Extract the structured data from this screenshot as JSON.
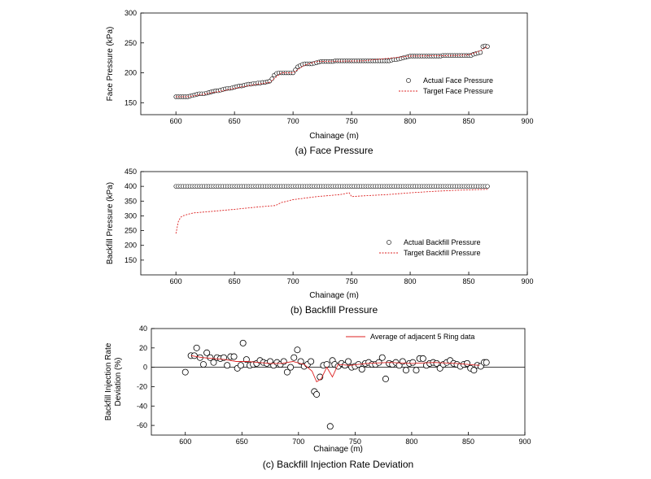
{
  "chart_data": [
    {
      "type": "scatter",
      "caption": "(a)  Face  Pressure",
      "xlabel": "Chainage (m)",
      "ylabel": "Face Pressure (kPa)",
      "xlim": [
        570,
        900
      ],
      "ylim": [
        130,
        300
      ],
      "xticks": [
        600,
        650,
        700,
        750,
        800,
        850,
        900
      ],
      "yticks": [
        150,
        200,
        250,
        300
      ],
      "legend_position": "bottom-right",
      "series": [
        {
          "name": "Actual Face Pressure",
          "style": "open-circle",
          "x": [
            600,
            602,
            604,
            606,
            608,
            610,
            612,
            614,
            616,
            618,
            620,
            622,
            624,
            626,
            628,
            630,
            632,
            634,
            636,
            638,
            640,
            642,
            644,
            646,
            648,
            650,
            652,
            654,
            656,
            658,
            660,
            662,
            664,
            666,
            668,
            670,
            672,
            674,
            676,
            678,
            680,
            682,
            684,
            686,
            688,
            690,
            692,
            694,
            696,
            698,
            700,
            702,
            704,
            706,
            708,
            710,
            712,
            714,
            716,
            718,
            720,
            722,
            724,
            726,
            728,
            730,
            732,
            734,
            736,
            738,
            740,
            742,
            744,
            746,
            748,
            750,
            752,
            754,
            756,
            758,
            760,
            762,
            764,
            766,
            768,
            770,
            772,
            774,
            776,
            778,
            780,
            782,
            784,
            786,
            788,
            790,
            792,
            794,
            796,
            798,
            800,
            802,
            804,
            806,
            808,
            810,
            812,
            814,
            816,
            818,
            820,
            822,
            824,
            826,
            828,
            830,
            832,
            834,
            836,
            838,
            840,
            842,
            844,
            846,
            848,
            850,
            852,
            854,
            856,
            858,
            860,
            862,
            864,
            866
          ],
          "y": [
            160,
            160,
            160,
            160,
            160,
            160,
            161,
            162,
            163,
            164,
            165,
            165,
            165,
            166,
            167,
            168,
            169,
            170,
            170,
            171,
            172,
            173,
            174,
            174,
            175,
            176,
            177,
            178,
            178,
            179,
            180,
            181,
            181,
            182,
            182,
            183,
            183,
            184,
            184,
            185,
            186,
            190,
            196,
            199,
            200,
            200,
            200,
            200,
            200,
            200,
            200,
            205,
            210,
            212,
            214,
            215,
            215,
            215,
            215,
            216,
            217,
            218,
            219,
            219,
            219,
            219,
            219,
            219,
            220,
            220,
            220,
            220,
            220,
            220,
            220,
            220,
            220,
            220,
            220,
            220,
            220,
            220,
            220,
            220,
            220,
            220,
            220,
            220,
            220,
            220,
            220,
            220,
            221,
            222,
            222,
            223,
            224,
            225,
            226,
            227,
            228,
            228,
            228,
            228,
            228,
            228,
            228,
            228,
            228,
            228,
            228,
            228,
            228,
            228,
            229,
            229,
            229,
            229,
            229,
            229,
            229,
            229,
            229,
            229,
            229,
            229,
            229,
            231,
            232,
            233,
            234,
            244,
            245,
            244
          ]
        },
        {
          "name": "Target Face Pressure",
          "style": "dashed-line",
          "x": [
            600,
            610,
            620,
            640,
            660,
            680,
            690,
            700,
            710,
            720,
            760,
            800,
            840,
            850,
            860,
            866
          ],
          "y": [
            160,
            160,
            163,
            170,
            178,
            184,
            200,
            200,
            213,
            219,
            220,
            228,
            229,
            230,
            237,
            244
          ]
        }
      ]
    },
    {
      "type": "scatter",
      "caption": "(b)  Backfill  Pressure",
      "xlabel": "Chainage (m)",
      "ylabel": "Backfill Pressure (kPa)",
      "xlim": [
        570,
        900
      ],
      "ylim": [
        100,
        450
      ],
      "xticks": [
        600,
        650,
        700,
        750,
        800,
        850,
        900
      ],
      "yticks": [
        150,
        200,
        250,
        300,
        350,
        400,
        450
      ],
      "legend_position": "right",
      "series": [
        {
          "name": "Actual Backfill Pressure",
          "style": "open-circle",
          "x": [
            600,
            602,
            604,
            606,
            608,
            610,
            612,
            614,
            616,
            618,
            620,
            622,
            624,
            626,
            628,
            630,
            632,
            634,
            636,
            638,
            640,
            642,
            644,
            646,
            648,
            650,
            652,
            654,
            656,
            658,
            660,
            662,
            664,
            666,
            668,
            670,
            672,
            674,
            676,
            678,
            680,
            682,
            684,
            686,
            688,
            690,
            692,
            694,
            696,
            698,
            700,
            702,
            704,
            706,
            708,
            710,
            712,
            714,
            716,
            718,
            720,
            722,
            724,
            726,
            728,
            730,
            732,
            734,
            736,
            738,
            740,
            742,
            744,
            746,
            748,
            750,
            752,
            754,
            756,
            758,
            760,
            762,
            764,
            766,
            768,
            770,
            772,
            774,
            776,
            778,
            780,
            782,
            784,
            786,
            788,
            790,
            792,
            794,
            796,
            798,
            800,
            802,
            804,
            806,
            808,
            810,
            812,
            814,
            816,
            818,
            820,
            822,
            824,
            826,
            828,
            830,
            832,
            834,
            836,
            838,
            840,
            842,
            844,
            846,
            848,
            850,
            852,
            854,
            856,
            858,
            860,
            862,
            864,
            866
          ],
          "y": [
            400,
            400,
            400,
            400,
            400,
            400,
            400,
            400,
            400,
            400,
            400,
            400,
            400,
            400,
            400,
            400,
            400,
            400,
            400,
            400,
            400,
            400,
            400,
            400,
            400,
            400,
            400,
            400,
            400,
            400,
            400,
            400,
            400,
            400,
            400,
            400,
            400,
            400,
            400,
            400,
            400,
            400,
            400,
            400,
            400,
            400,
            400,
            400,
            400,
            400,
            400,
            400,
            400,
            400,
            400,
            400,
            400,
            400,
            400,
            400,
            400,
            400,
            400,
            400,
            400,
            400,
            400,
            400,
            400,
            400,
            400,
            400,
            400,
            400,
            400,
            400,
            400,
            400,
            400,
            400,
            400,
            400,
            400,
            400,
            400,
            400,
            400,
            400,
            400,
            400,
            400,
            400,
            400,
            400,
            400,
            400,
            400,
            400,
            400,
            400,
            400,
            400,
            400,
            400,
            400,
            400,
            400,
            400,
            400,
            400,
            400,
            400,
            400,
            400,
            400,
            400,
            400,
            400,
            400,
            400,
            400,
            400,
            400,
            400,
            400,
            400,
            400,
            400,
            400,
            400,
            400,
            400,
            400,
            400
          ]
        },
        {
          "name": "Target Backfill Pressure",
          "style": "dashed-line",
          "x": [
            600,
            602,
            604,
            606,
            610,
            615,
            630,
            650,
            670,
            685,
            690,
            700,
            720,
            740,
            748,
            750,
            760,
            780,
            800,
            820,
            840,
            866
          ],
          "y": [
            240,
            280,
            295,
            300,
            305,
            310,
            315,
            322,
            330,
            335,
            345,
            355,
            365,
            372,
            378,
            365,
            368,
            372,
            378,
            383,
            387,
            390
          ]
        }
      ]
    },
    {
      "type": "scatter",
      "caption": "(c)  Backfill  Injection  Rate  Deviation",
      "xlabel": "Chainage (m)",
      "ylabel": "Backfill Injection Rate\nDeviation (%)",
      "xlim": [
        570,
        900
      ],
      "ylim": [
        -70,
        40
      ],
      "xticks": [
        600,
        650,
        700,
        750,
        800,
        850,
        900
      ],
      "yticks": [
        -60,
        -40,
        -20,
        0,
        20,
        40
      ],
      "legend_position": "top-right",
      "series": [
        {
          "name": "Backfill Injection Rate Deviation",
          "style": "open-circle",
          "x": [
            600,
            605,
            608,
            610,
            613,
            616,
            619,
            622,
            625,
            628,
            631,
            634,
            637,
            640,
            643,
            646,
            649,
            651,
            654,
            657,
            660,
            663,
            666,
            669,
            672,
            675,
            678,
            681,
            684,
            687,
            690,
            693,
            696,
            699,
            702,
            705,
            708,
            711,
            714,
            716,
            719,
            722,
            725,
            728,
            730,
            732,
            735,
            738,
            741,
            744,
            747,
            750,
            753,
            756,
            759,
            762,
            765,
            768,
            771,
            774,
            777,
            780,
            783,
            786,
            789,
            792,
            795,
            798,
            801,
            804,
            807,
            810,
            813,
            816,
            819,
            822,
            825,
            828,
            831,
            834,
            837,
            840,
            843,
            846,
            849,
            852,
            855,
            858,
            861,
            864,
            866
          ],
          "y": [
            -5,
            12,
            12,
            20,
            10,
            3,
            15,
            10,
            5,
            10,
            9,
            10,
            2,
            11,
            11,
            -1,
            2,
            25,
            8,
            2,
            3,
            4,
            7,
            5,
            4,
            6,
            2,
            5,
            3,
            6,
            -5,
            0,
            10,
            18,
            6,
            1,
            3,
            6,
            -25,
            -28,
            -10,
            2,
            3,
            -61,
            7,
            3,
            1,
            4,
            2,
            6,
            0,
            1,
            3,
            -2,
            4,
            5,
            3,
            3,
            5,
            10,
            -12,
            4,
            3,
            5,
            2,
            6,
            -3,
            4,
            5,
            -3,
            9,
            9,
            2,
            4,
            5,
            4,
            -1,
            3,
            5,
            7,
            4,
            3,
            1,
            3,
            4,
            -1,
            -3,
            2,
            1,
            5,
            5
          ]
        },
        {
          "name": "Average of adjacent 5 Ring data",
          "style": "solid-line",
          "x": [
            605,
            615,
            625,
            635,
            645,
            655,
            665,
            675,
            685,
            695,
            705,
            712,
            716,
            720,
            725,
            730,
            735,
            745,
            760,
            780,
            800,
            820,
            840,
            860
          ],
          "y": [
            12,
            10,
            9,
            8,
            6,
            6,
            5,
            4,
            4,
            6,
            3,
            -4,
            -15,
            -12,
            0,
            -10,
            3,
            2,
            4,
            5,
            4,
            5,
            4,
            2
          ]
        }
      ]
    }
  ]
}
